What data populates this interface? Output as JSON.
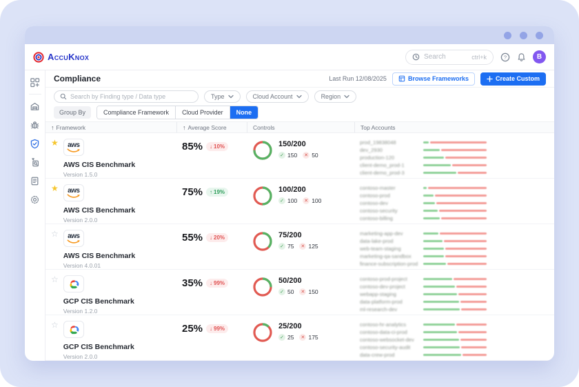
{
  "topbar": {
    "brand": "AccuKnox",
    "search_placeholder": "Search",
    "search_shortcut": "ctrl+k",
    "avatar_initial": "B"
  },
  "sidebar": {
    "items": [
      "apps",
      "inventory",
      "issues",
      "compliance",
      "findings",
      "reports",
      "settings"
    ],
    "active": "compliance"
  },
  "page": {
    "title": "Compliance",
    "last_run": "Last Run 12/08/2025",
    "browse_button": "Browse Frameworks",
    "create_button": "Create Custom"
  },
  "filters": {
    "search_placeholder": "Search by Finding type / Data type",
    "type_label": "Type",
    "cloud_account_label": "Cloud Account",
    "region_label": "Region",
    "group_by_label": "Group By",
    "group_options": [
      "Compliance Framework",
      "Cloud Provider",
      "None"
    ],
    "group_selected": "None"
  },
  "table": {
    "headers": [
      "Framework",
      "Average Score",
      "Controls",
      "Top Accounts"
    ],
    "rows": [
      {
        "starred": true,
        "provider": "aws",
        "name": "AWS CIS Benchmark",
        "version": "Version 1.5.0",
        "score": "85%",
        "trend": {
          "dir": "down",
          "value": "10%"
        },
        "controls": {
          "fraction": "150/200",
          "passed": 150,
          "failed": 50,
          "total": 200
        },
        "accounts": [
          {
            "name": "prod_19838048",
            "redacted": true,
            "pass": 0.09
          },
          {
            "name": "dev_2930",
            "redacted": true,
            "pass": 0.26
          },
          {
            "name": "production-120",
            "redacted": true,
            "pass": 0.33
          },
          {
            "name": "client-demo_prod-1",
            "redacted": true,
            "pass": 0.44
          },
          {
            "name": "client-demo_prod-3",
            "redacted": true,
            "pass": 0.52
          }
        ]
      },
      {
        "starred": true,
        "provider": "aws",
        "name": "AWS CIS Benchmark",
        "version": "Version 2.0.0",
        "score": "75%",
        "trend": {
          "dir": "up",
          "value": "19%"
        },
        "controls": {
          "fraction": "100/200",
          "passed": 100,
          "failed": 100,
          "total": 200
        },
        "accounts": [
          {
            "name": "contoso-master",
            "redacted": true,
            "pass": 0.05
          },
          {
            "name": "contoso-prod",
            "redacted": true,
            "pass": 0.16
          },
          {
            "name": "contoso-dev",
            "redacted": true,
            "pass": 0.19
          },
          {
            "name": "contoso-security",
            "redacted": true,
            "pass": 0.23
          },
          {
            "name": "contoso-billing",
            "redacted": true,
            "pass": 0.26
          }
        ]
      },
      {
        "starred": false,
        "provider": "aws",
        "name": "AWS CIS Benchmark",
        "version": "Version 4.0.01",
        "score": "55%",
        "trend": {
          "dir": "down",
          "value": "20%"
        },
        "controls": {
          "fraction": "75/200",
          "passed": 75,
          "failed": 125,
          "total": 200
        },
        "accounts": [
          {
            "name": "marketing-app-dev",
            "redacted": true,
            "pass": 0.24
          },
          {
            "name": "data-lake-prod",
            "redacted": true,
            "pass": 0.3
          },
          {
            "name": "web-team-staging",
            "redacted": true,
            "pass": 0.33
          },
          {
            "name": "marketing-qa-sandbox",
            "redacted": true,
            "pass": 0.33
          },
          {
            "name": "finance-subscription-prod",
            "redacted": true,
            "pass": 0.36
          }
        ]
      },
      {
        "starred": false,
        "provider": "gcp",
        "name": "GCP CIS Benchmark",
        "version": "Version 1.2.0",
        "score": "35%",
        "trend": {
          "dir": "down",
          "value": "99%"
        },
        "controls": {
          "fraction": "50/200",
          "passed": 50,
          "failed": 150,
          "total": 200
        },
        "accounts": [
          {
            "name": "contoso-prod-project",
            "redacted": true,
            "pass": 0.46
          },
          {
            "name": "contoso-dev-project",
            "redacted": true,
            "pass": 0.5
          },
          {
            "name": "webapp-staging",
            "redacted": true,
            "pass": 0.53
          },
          {
            "name": "data-platform-prod",
            "redacted": true,
            "pass": 0.56
          },
          {
            "name": "ml-research-dev",
            "redacted": true,
            "pass": 0.58
          }
        ]
      },
      {
        "starred": false,
        "provider": "gcp",
        "name": "GCP CIS Benchmark",
        "version": "Version 2.0.0",
        "score": "25%",
        "trend": {
          "dir": "down",
          "value": "99%"
        },
        "controls": {
          "fraction": "25/200",
          "passed": 25,
          "failed": 175,
          "total": 200
        },
        "accounts": [
          {
            "name": "contoso-hr-analytics",
            "redacted": true,
            "pass": 0.5
          },
          {
            "name": "contoso-data-ci-prod",
            "redacted": true,
            "pass": 0.53
          },
          {
            "name": "contoso-websocket-dev",
            "redacted": true,
            "pass": 0.56
          },
          {
            "name": "contoso-security-audit",
            "redacted": true,
            "pass": 0.58
          },
          {
            "name": "data-crew-prod",
            "redacted": true,
            "pass": 0.6
          }
        ]
      }
    ]
  },
  "colors": {
    "accent_blue": "#1c6ef2",
    "brand_blue": "#2433c9",
    "brand_red": "#e3242b",
    "pass_green": "#56b364",
    "fail_red": "#e15a52",
    "trend_up_green": "#2f9e5b",
    "trend_down_red": "#e05252",
    "page_background": "#dce3f7",
    "titlebar": "#cdd6f2",
    "avatar_purple": "#8257f0",
    "star_gold": "#f6c62d"
  }
}
